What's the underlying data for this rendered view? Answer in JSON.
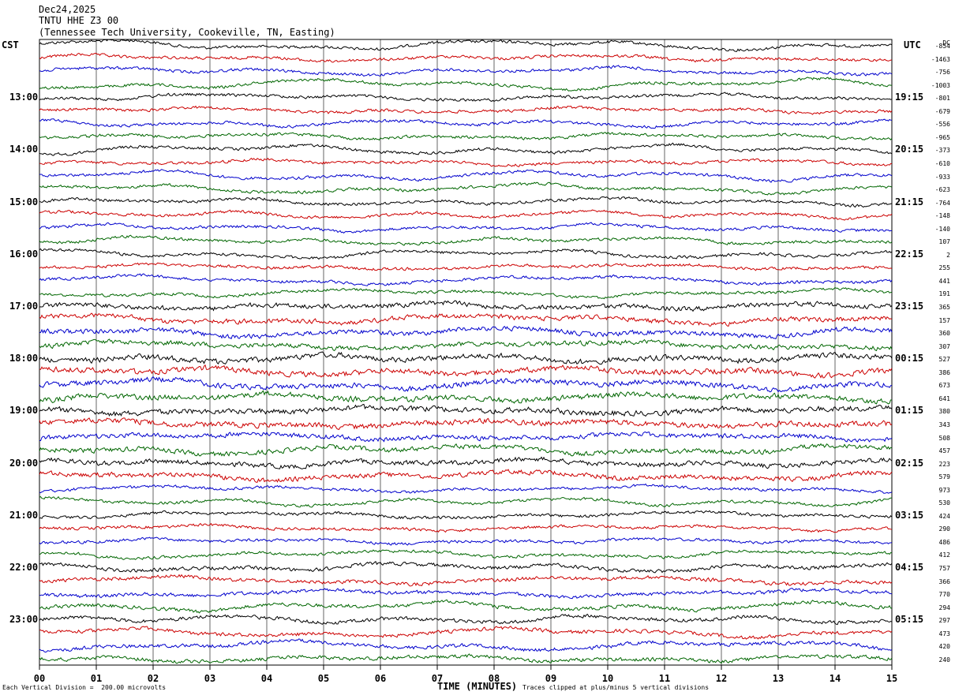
{
  "header": {
    "date": "Dec24,2025",
    "station": "TNTU HHE Z3 00",
    "location": "(Tennessee Tech University, Cookeville, TN, Easting)"
  },
  "left_tz": "CST",
  "right_tz": "UTC",
  "dc_label": "DC",
  "footer": {
    "vertical_division": "Each Vertical Division =  200.00 microvolts",
    "clip_note": "Traces clipped at plus/minus 5 vertical divisions"
  },
  "trace_colors": [
    "#000000",
    "#cc0000",
    "#0000cc",
    "#006600"
  ],
  "chart_data": {
    "type": "line",
    "title": "TNTU HHE Z3 00",
    "xlabel": "TIME (MINUTES)",
    "x_ticks": [
      "00",
      "01",
      "02",
      "03",
      "04",
      "05",
      "06",
      "07",
      "08",
      "09",
      "10",
      "11",
      "12",
      "13",
      "14",
      "15"
    ],
    "xlim": [
      0,
      15
    ],
    "left_hour_labels": [
      "13:00",
      "14:00",
      "15:00",
      "16:00",
      "17:00",
      "18:00",
      "19:00",
      "20:00",
      "21:00",
      "22:00",
      "23:00"
    ],
    "right_hour_labels": [
      "19:15",
      "20:15",
      "21:15",
      "22:15",
      "23:15",
      "00:15",
      "01:15",
      "02:15",
      "03:15",
      "04:15",
      "05:15"
    ],
    "trace_dc_offsets": [
      "-854",
      "-1463",
      "-756",
      "-1003",
      "-801",
      "-679",
      "-556",
      "-965",
      "-373",
      "-610",
      "-933",
      "-623",
      "-764",
      "-148",
      "-140",
      "107",
      "2",
      "255",
      "441",
      "191",
      "365",
      "157",
      "360",
      "307",
      "527",
      "386",
      "673",
      "641",
      "380",
      "343",
      "508",
      "457",
      "223",
      "579",
      "973",
      "530",
      "424",
      "290",
      "486",
      "412",
      "757",
      "366",
      "770",
      "294",
      "297",
      "473",
      "420",
      "240"
    ]
  }
}
